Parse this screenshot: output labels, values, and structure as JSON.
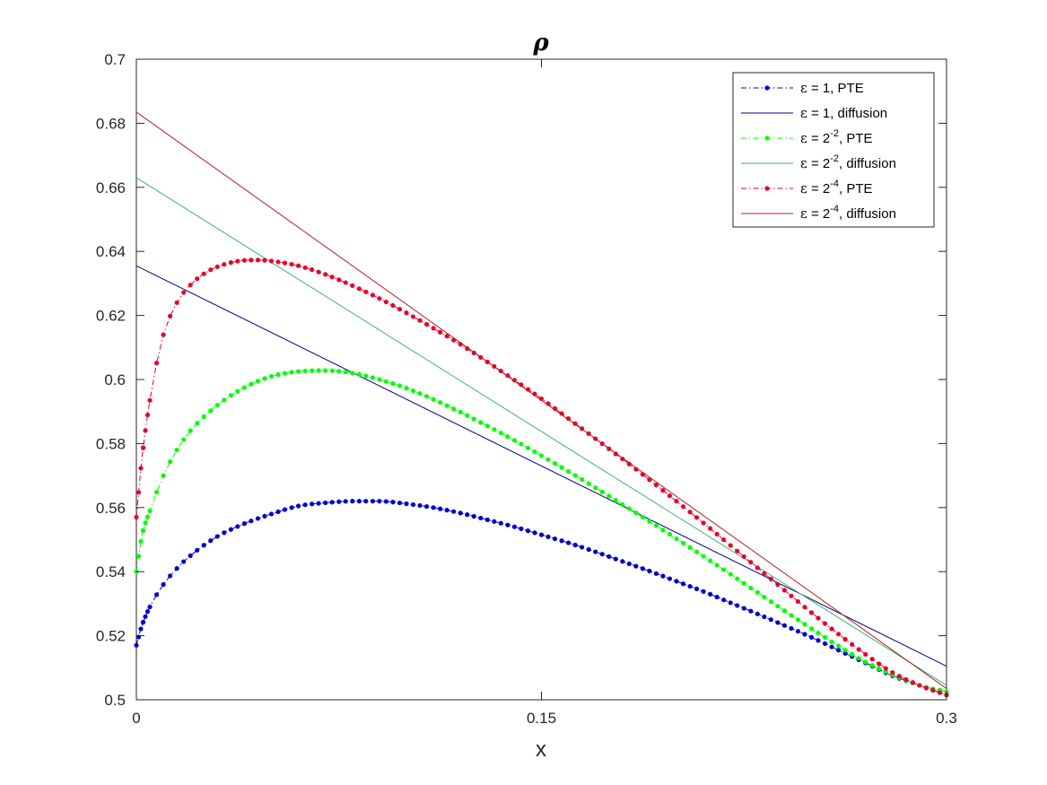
{
  "chart_data": {
    "type": "line",
    "title": "ρ",
    "xlabel": "x",
    "ylabel": "",
    "xlim": [
      0,
      0.3
    ],
    "ylim": [
      0.5,
      0.7
    ],
    "xticks": [
      0,
      0.15,
      0.3
    ],
    "xtick_labels": [
      "0",
      "0.15",
      "0.3"
    ],
    "yticks": [
      0.5,
      0.52,
      0.54,
      0.56,
      0.58,
      0.6,
      0.62,
      0.64,
      0.66,
      0.68,
      0.7
    ],
    "ytick_labels": [
      "0.5",
      "0.52",
      "0.54",
      "0.56",
      "0.58",
      "0.6",
      "0.62",
      "0.64",
      "0.66",
      "0.68",
      "0.7"
    ],
    "grid": false,
    "legend_position": "top-right",
    "series": [
      {
        "name": "ε = 1, PTE",
        "legend": {
          "sym": "ε",
          "pre": " = 1",
          "exp": "",
          "post": ", PTE"
        },
        "color": "#0000cc",
        "style": "dash-dot-markers",
        "points": [
          [
            0,
            0.517
          ],
          [
            0.002,
            0.523
          ],
          [
            0.005,
            0.529
          ],
          [
            0.01,
            0.536
          ],
          [
            0.015,
            0.541
          ],
          [
            0.02,
            0.545
          ],
          [
            0.03,
            0.551
          ],
          [
            0.04,
            0.555
          ],
          [
            0.05,
            0.558
          ],
          [
            0.06,
            0.5605
          ],
          [
            0.07,
            0.5615
          ],
          [
            0.08,
            0.562
          ],
          [
            0.09,
            0.562
          ],
          [
            0.1,
            0.5612
          ],
          [
            0.11,
            0.56
          ],
          [
            0.12,
            0.5583
          ],
          [
            0.13,
            0.5562
          ],
          [
            0.14,
            0.554
          ],
          [
            0.15,
            0.5515
          ],
          [
            0.16,
            0.549
          ],
          [
            0.17,
            0.5462
          ],
          [
            0.18,
            0.5432
          ],
          [
            0.19,
            0.5402
          ],
          [
            0.2,
            0.537
          ],
          [
            0.21,
            0.5338
          ],
          [
            0.22,
            0.5303
          ],
          [
            0.23,
            0.5268
          ],
          [
            0.24,
            0.5232
          ],
          [
            0.25,
            0.5195
          ],
          [
            0.26,
            0.5155
          ],
          [
            0.27,
            0.5115
          ],
          [
            0.28,
            0.5075
          ],
          [
            0.29,
            0.5045
          ],
          [
            0.3,
            0.5015
          ]
        ]
      },
      {
        "name": "ε = 1, diffusion",
        "legend": {
          "sym": "ε",
          "pre": " = 1",
          "exp": "",
          "post": ", diffusion"
        },
        "color": "#00008b",
        "style": "solid",
        "points": [
          [
            0,
            0.6355
          ],
          [
            0.3,
            0.5105
          ]
        ]
      },
      {
        "name": "ε = 2^-2, PTE",
        "legend": {
          "sym": "ε",
          "pre": " = 2",
          "exp": "-2",
          "post": ", PTE"
        },
        "color": "#00ff00",
        "style": "dash-dot-markers",
        "points": [
          [
            0,
            0.54
          ],
          [
            0.002,
            0.551
          ],
          [
            0.005,
            0.559
          ],
          [
            0.01,
            0.57
          ],
          [
            0.015,
            0.578
          ],
          [
            0.02,
            0.584
          ],
          [
            0.03,
            0.592
          ],
          [
            0.04,
            0.5975
          ],
          [
            0.05,
            0.601
          ],
          [
            0.06,
            0.6025
          ],
          [
            0.07,
            0.6028
          ],
          [
            0.08,
            0.602
          ],
          [
            0.09,
            0.6
          ],
          [
            0.1,
            0.5973
          ],
          [
            0.11,
            0.5938
          ],
          [
            0.12,
            0.5898
          ],
          [
            0.13,
            0.5855
          ],
          [
            0.14,
            0.581
          ],
          [
            0.15,
            0.5762
          ],
          [
            0.16,
            0.5713
          ],
          [
            0.17,
            0.5662
          ],
          [
            0.18,
            0.561
          ],
          [
            0.19,
            0.5557
          ],
          [
            0.2,
            0.5503
          ],
          [
            0.21,
            0.5448
          ],
          [
            0.22,
            0.5392
          ],
          [
            0.23,
            0.5335
          ],
          [
            0.24,
            0.5278
          ],
          [
            0.25,
            0.5222
          ],
          [
            0.26,
            0.5168
          ],
          [
            0.27,
            0.5118
          ],
          [
            0.28,
            0.5078
          ],
          [
            0.29,
            0.5045
          ],
          [
            0.3,
            0.5025
          ]
        ]
      },
      {
        "name": "ε = 2^-2, diffusion",
        "legend": {
          "sym": "ε",
          "pre": " = 2",
          "exp": "-2",
          "post": ", diffusion"
        },
        "color": "#3cb371",
        "style": "solid",
        "points": [
          [
            0,
            0.663
          ],
          [
            0.3,
            0.5045
          ]
        ]
      },
      {
        "name": "ε = 2^-4, PTE",
        "legend": {
          "sym": "ε",
          "pre": " = 2",
          "exp": "-4",
          "post": ", PTE"
        },
        "color": "#e8002d",
        "style": "dash-dot-markers",
        "points": [
          [
            0,
            0.557
          ],
          [
            0.002,
            0.575
          ],
          [
            0.004,
            0.588
          ],
          [
            0.007,
            0.603
          ],
          [
            0.01,
            0.614
          ],
          [
            0.015,
            0.624
          ],
          [
            0.02,
            0.6295
          ],
          [
            0.025,
            0.633
          ],
          [
            0.03,
            0.6352
          ],
          [
            0.04,
            0.6372
          ],
          [
            0.045,
            0.6373
          ],
          [
            0.05,
            0.637
          ],
          [
            0.06,
            0.6355
          ],
          [
            0.07,
            0.6328
          ],
          [
            0.08,
            0.6293
          ],
          [
            0.09,
            0.6253
          ],
          [
            0.1,
            0.6208
          ],
          [
            0.11,
            0.616
          ],
          [
            0.12,
            0.611
          ],
          [
            0.13,
            0.6055
          ],
          [
            0.14,
            0.5998
          ],
          [
            0.15,
            0.594
          ],
          [
            0.16,
            0.5878
          ],
          [
            0.17,
            0.5815
          ],
          [
            0.18,
            0.5752
          ],
          [
            0.19,
            0.5687
          ],
          [
            0.2,
            0.562
          ],
          [
            0.21,
            0.5552
          ],
          [
            0.22,
            0.5482
          ],
          [
            0.23,
            0.5412
          ],
          [
            0.24,
            0.5342
          ],
          [
            0.25,
            0.5272
          ],
          [
            0.26,
            0.5205
          ],
          [
            0.27,
            0.5142
          ],
          [
            0.28,
            0.5085
          ],
          [
            0.29,
            0.5045
          ],
          [
            0.3,
            0.5015
          ]
        ]
      },
      {
        "name": "ε = 2^-4, diffusion",
        "legend": {
          "sym": "ε",
          "pre": " = 2",
          "exp": "-4",
          "post": ", diffusion"
        },
        "color": "#b22222",
        "style": "solid",
        "points": [
          [
            0,
            0.6835
          ],
          [
            0.3,
            0.5035
          ]
        ]
      }
    ]
  }
}
